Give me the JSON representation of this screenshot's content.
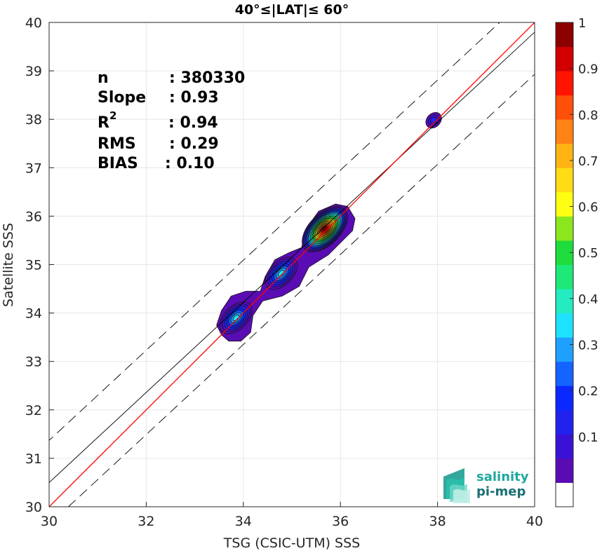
{
  "chart_data": {
    "type": "scatter",
    "subtype": "density-contour",
    "title": "40°≤|LAT|≤ 60°",
    "xlabel": "TSG (CSIC-UTM) SSS",
    "ylabel": "Satellite SSS",
    "xlim": [
      30,
      40
    ],
    "ylim": [
      30,
      40
    ],
    "xticks": [
      "30",
      "32",
      "34",
      "36",
      "38",
      "40"
    ],
    "yticks": [
      "30",
      "31",
      "32",
      "33",
      "34",
      "35",
      "36",
      "37",
      "38",
      "39",
      "40"
    ],
    "grid": true,
    "stats": [
      {
        "label": "n",
        "value": ": 380330"
      },
      {
        "label": "Slope",
        "value": ": 0.93"
      },
      {
        "label": "R",
        "sup": "2",
        "value": ": 0.94"
      },
      {
        "label": "RMS",
        "value": ": 0.29"
      },
      {
        "label": "BIAS",
        "value": ": 0.10"
      }
    ],
    "lines": {
      "identity": {
        "color": "#ff0000",
        "slope": 1,
        "intercept": 0
      },
      "fit": {
        "color": "#000000",
        "slope": 0.93,
        "intercept": 2.6
      },
      "bounds": {
        "color": "#000000",
        "dash": true,
        "offset": 0.87
      }
    },
    "density_clusters": [
      {
        "name": "cluster-38",
        "x": 37.92,
        "y": 37.98,
        "peak": 0.15
      },
      {
        "name": "cluster-34",
        "x": 33.85,
        "y": 33.9,
        "peak": 0.35
      },
      {
        "name": "cluster-35",
        "x": 34.78,
        "y": 34.82,
        "peak": 0.38
      },
      {
        "name": "cluster-36",
        "x": 35.68,
        "y": 35.73,
        "peak": 1.0
      }
    ],
    "colorbar": {
      "min": 0,
      "max": 1,
      "ticks": [
        "0.1",
        "0.2",
        "0.3",
        "0.4",
        "0.5",
        "0.6",
        "0.7",
        "0.8",
        "0.9",
        "1"
      ],
      "colors": [
        "#ffffff",
        "#5a0cb4",
        "#3a12d6",
        "#2222ee",
        "#0a28ff",
        "#1464ff",
        "#1ea0ff",
        "#1ee1ff",
        "#25ebc0",
        "#1ee878",
        "#1edc3c",
        "#8ce61e",
        "#ffff14",
        "#ffdc14",
        "#ffb414",
        "#ff8214",
        "#ff500a",
        "#ff1400",
        "#d20000",
        "#8c0000"
      ]
    }
  },
  "logo": {
    "line1": "salinity",
    "line2": "pi-mep"
  }
}
